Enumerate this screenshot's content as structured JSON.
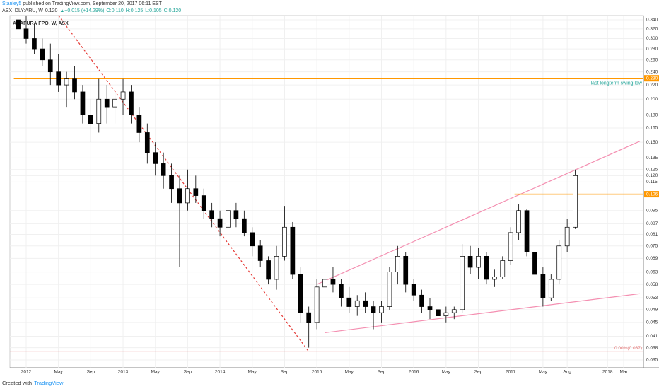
{
  "header": {
    "author": "Stanley5",
    "published": "published on TradingView.com, September 20, 2017 06:11 EST",
    "symbol": "ASX_DLY:ARU, W",
    "last": "0.120",
    "change": "▲+0.015 (+14.29%)",
    "open": "O:0.110",
    "high": "H:0.125",
    "low": "L:0.105",
    "close": "C:0.120"
  },
  "footer": {
    "created": "Created with",
    "brand": "TradingView"
  },
  "chart_data": {
    "type": "candlestick",
    "title": "ARAFURA FPO, W, ASX",
    "log_scale": true,
    "grid": true,
    "up_color": "#ffffff",
    "down_color": "#000000",
    "outline_color": "#000000",
    "x": [
      "2011-12",
      "2012-01",
      "2012-02",
      "2012-03",
      "2012-04",
      "2012-05",
      "2012-06",
      "2012-07",
      "2012-08",
      "2012-09",
      "2012-10",
      "2012-11",
      "2012-12",
      "2013-01",
      "2013-02",
      "2013-03",
      "2013-04",
      "2013-05",
      "2013-06",
      "2013-07",
      "2013-08",
      "2013-09",
      "2013-10",
      "2013-11",
      "2013-12",
      "2014-01",
      "2014-02",
      "2014-03",
      "2014-04",
      "2014-05",
      "2014-06",
      "2014-07",
      "2014-08",
      "2014-09",
      "2014-10",
      "2014-11",
      "2014-12",
      "2015-01",
      "2015-02",
      "2015-03",
      "2015-04",
      "2015-05",
      "2015-06",
      "2015-07",
      "2015-08",
      "2015-09",
      "2015-10",
      "2015-11",
      "2015-12",
      "2016-01",
      "2016-02",
      "2016-03",
      "2016-04",
      "2016-05",
      "2016-06",
      "2016-07",
      "2016-08",
      "2016-09",
      "2016-10",
      "2016-11",
      "2016-12",
      "2017-01",
      "2017-02",
      "2017-03",
      "2017-04",
      "2017-05",
      "2017-06",
      "2017-07",
      "2017-08",
      "2017-09"
    ],
    "open": [
      0.34,
      0.32,
      0.3,
      0.28,
      0.26,
      0.24,
      0.22,
      0.23,
      0.21,
      0.18,
      0.17,
      0.2,
      0.19,
      0.2,
      0.21,
      0.18,
      0.16,
      0.14,
      0.13,
      0.12,
      0.11,
      0.1,
      0.11,
      0.105,
      0.095,
      0.09,
      0.085,
      0.095,
      0.09,
      0.082,
      0.075,
      0.068,
      0.06,
      0.07,
      0.085,
      0.062,
      0.048,
      0.045,
      0.057,
      0.06,
      0.058,
      0.053,
      0.05,
      0.052,
      0.05,
      0.048,
      0.05,
      0.063,
      0.07,
      0.058,
      0.054,
      0.05,
      0.049,
      0.047,
      0.048,
      0.049,
      0.07,
      0.065,
      0.07,
      0.06,
      0.061,
      0.068,
      0.082,
      0.095,
      0.072,
      0.062,
      0.053,
      0.06,
      0.075,
      0.085
    ],
    "high": [
      0.38,
      0.35,
      0.33,
      0.3,
      0.29,
      0.27,
      0.24,
      0.25,
      0.22,
      0.2,
      0.23,
      0.22,
      0.21,
      0.23,
      0.22,
      0.19,
      0.17,
      0.15,
      0.14,
      0.13,
      0.12,
      0.125,
      0.12,
      0.11,
      0.1,
      0.095,
      0.1,
      0.1,
      0.095,
      0.085,
      0.078,
      0.07,
      0.075,
      0.098,
      0.088,
      0.065,
      0.05,
      0.06,
      0.063,
      0.065,
      0.06,
      0.057,
      0.054,
      0.055,
      0.052,
      0.052,
      0.065,
      0.075,
      0.072,
      0.06,
      0.056,
      0.053,
      0.051,
      0.05,
      0.05,
      0.076,
      0.075,
      0.074,
      0.072,
      0.064,
      0.07,
      0.085,
      0.099,
      0.096,
      0.075,
      0.065,
      0.062,
      0.078,
      0.09,
      0.125
    ],
    "low": [
      0.31,
      0.29,
      0.27,
      0.25,
      0.22,
      0.21,
      0.19,
      0.2,
      0.17,
      0.15,
      0.16,
      0.17,
      0.17,
      0.18,
      0.17,
      0.15,
      0.13,
      0.12,
      0.11,
      0.1,
      0.065,
      0.095,
      0.1,
      0.09,
      0.085,
      0.08,
      0.08,
      0.085,
      0.08,
      0.07,
      0.065,
      0.058,
      0.056,
      0.068,
      0.06,
      0.045,
      0.038,
      0.043,
      0.052,
      0.055,
      0.05,
      0.048,
      0.047,
      0.048,
      0.043,
      0.045,
      0.049,
      0.058,
      0.055,
      0.052,
      0.048,
      0.046,
      0.043,
      0.045,
      0.046,
      0.048,
      0.062,
      0.06,
      0.058,
      0.057,
      0.06,
      0.066,
      0.078,
      0.07,
      0.06,
      0.05,
      0.052,
      0.058,
      0.072,
      0.084
    ],
    "close": [
      0.32,
      0.3,
      0.28,
      0.26,
      0.24,
      0.22,
      0.23,
      0.21,
      0.18,
      0.17,
      0.2,
      0.19,
      0.2,
      0.21,
      0.18,
      0.16,
      0.14,
      0.13,
      0.12,
      0.11,
      0.1,
      0.11,
      0.105,
      0.095,
      0.09,
      0.085,
      0.095,
      0.09,
      0.082,
      0.075,
      0.068,
      0.06,
      0.07,
      0.085,
      0.062,
      0.048,
      0.045,
      0.057,
      0.06,
      0.058,
      0.053,
      0.05,
      0.052,
      0.05,
      0.048,
      0.05,
      0.063,
      0.07,
      0.058,
      0.054,
      0.05,
      0.049,
      0.047,
      0.048,
      0.049,
      0.07,
      0.065,
      0.07,
      0.06,
      0.061,
      0.068,
      0.082,
      0.095,
      0.072,
      0.062,
      0.053,
      0.06,
      0.075,
      0.085,
      0.12
    ],
    "xticks": [
      {
        "value": "2012-01",
        "label": "2012"
      },
      {
        "value": "2012-05",
        "label": "May"
      },
      {
        "value": "2012-09",
        "label": "Sep"
      },
      {
        "value": "2013-01",
        "label": "2013"
      },
      {
        "value": "2013-05",
        "label": "May"
      },
      {
        "value": "2013-09",
        "label": "Sep"
      },
      {
        "value": "2014-01",
        "label": "2014"
      },
      {
        "value": "2014-05",
        "label": "May"
      },
      {
        "value": "2014-09",
        "label": "Sep"
      },
      {
        "value": "2015-01",
        "label": "2015"
      },
      {
        "value": "2015-05",
        "label": "May"
      },
      {
        "value": "2015-09",
        "label": "Sep"
      },
      {
        "value": "2016-01",
        "label": "2016"
      },
      {
        "value": "2016-05",
        "label": "May"
      },
      {
        "value": "2016-09",
        "label": "Sep"
      },
      {
        "value": "2017-01",
        "label": "2017"
      },
      {
        "value": "2017-05",
        "label": "May"
      },
      {
        "value": "2017-08",
        "label": "Aug"
      },
      {
        "value": "2018-01",
        "label": "2018"
      },
      {
        "value": "2018-03",
        "label": "Mar"
      }
    ],
    "ylim": [
      0.035,
      0.34
    ],
    "yticks": [
      {
        "value": 0.34,
        "label": "0.340"
      },
      {
        "value": 0.32,
        "label": "0.320"
      },
      {
        "value": 0.3,
        "label": "0.300"
      },
      {
        "value": 0.28,
        "label": "0.280"
      },
      {
        "value": 0.26,
        "label": "0.260"
      },
      {
        "value": 0.24,
        "label": "0.240"
      },
      {
        "value": 0.22,
        "label": "0.220"
      },
      {
        "value": 0.2,
        "label": "0.200"
      },
      {
        "value": 0.18,
        "label": "0.180"
      },
      0.165,
      {
        "value": 0.15,
        "label": "0.150"
      },
      0.135,
      0.125,
      {
        "value": 0.12,
        "label": "0.120"
      },
      0.115,
      0.095,
      0.087,
      0.081,
      0.075,
      0.069,
      0.063,
      0.058,
      0.053,
      0.049,
      0.045,
      0.041,
      0.038,
      0.035
    ],
    "hlines": [
      {
        "value": 0.23,
        "label": "0.230",
        "from": "2011-12",
        "color": "#ff9800",
        "annotation": "last longterm swing low"
      },
      {
        "value": 0.106,
        "label": "0.106",
        "from": "2017-02",
        "color": "#ff9800"
      }
    ],
    "baseline": {
      "value": 0.037,
      "label": "0.00%(0.037)",
      "color": "#e57373"
    },
    "trendlines": [
      {
        "from": [
          "2012-05",
          0.35
        ],
        "to": [
          "2014-12",
          0.037
        ],
        "color": "#e53935",
        "dashed": true
      },
      {
        "from": [
          "2015-01",
          0.058
        ],
        "to": [
          "2018-05",
          0.151
        ],
        "color": "#f48fb1",
        "dashed": false
      },
      {
        "from": [
          "2015-02",
          0.042
        ],
        "to": [
          "2018-05",
          0.0545
        ],
        "color": "#f48fb1",
        "dashed": false
      }
    ]
  }
}
